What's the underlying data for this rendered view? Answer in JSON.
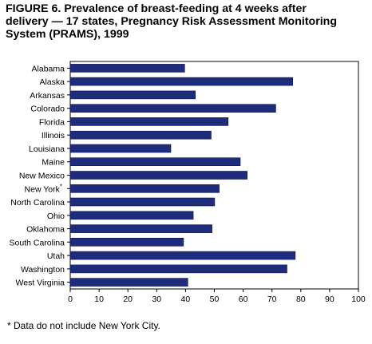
{
  "title_lines": [
    "FIGURE 6. Prevalence of breast-feeding at 4 weeks after",
    "delivery — 17 states, Pregnancy Risk Assessment Monitoring",
    "System (PRAMS), 1999"
  ],
  "footnote": "* Data do not include New York City.",
  "colors": {
    "bar": "#1f2c7c",
    "bar_edge": "#0a1250",
    "axis": "#000000"
  },
  "chart_data": {
    "type": "bar",
    "orientation": "horizontal",
    "title": "FIGURE 6. Prevalence of breast-feeding at 4 weeks after delivery — 17 states, Pregnancy Risk Assessment Monitoring System (PRAMS), 1999",
    "categories": [
      "Alabama",
      "Alaska",
      "Arkansas",
      "Colorado",
      "Florida",
      "Illinois",
      "Louisiana",
      "Maine",
      "New Mexico",
      "New York*",
      "North Carolina",
      "Ohio",
      "Oklahoma",
      "South Carolina",
      "Utah",
      "Washington",
      "West Virginia"
    ],
    "values": [
      39.7,
      77.2,
      43.4,
      71.3,
      54.8,
      48.9,
      34.9,
      59.0,
      61.4,
      51.7,
      50.1,
      42.7,
      49.2,
      39.3,
      78.1,
      75.2,
      40.8
    ],
    "xlim": [
      0,
      100
    ],
    "xticks": [
      "0",
      "10",
      "20",
      "30",
      "40",
      "50",
      "60",
      "70",
      "80",
      "90",
      "100"
    ],
    "xlabel": "",
    "ylabel": "",
    "grid": false
  }
}
